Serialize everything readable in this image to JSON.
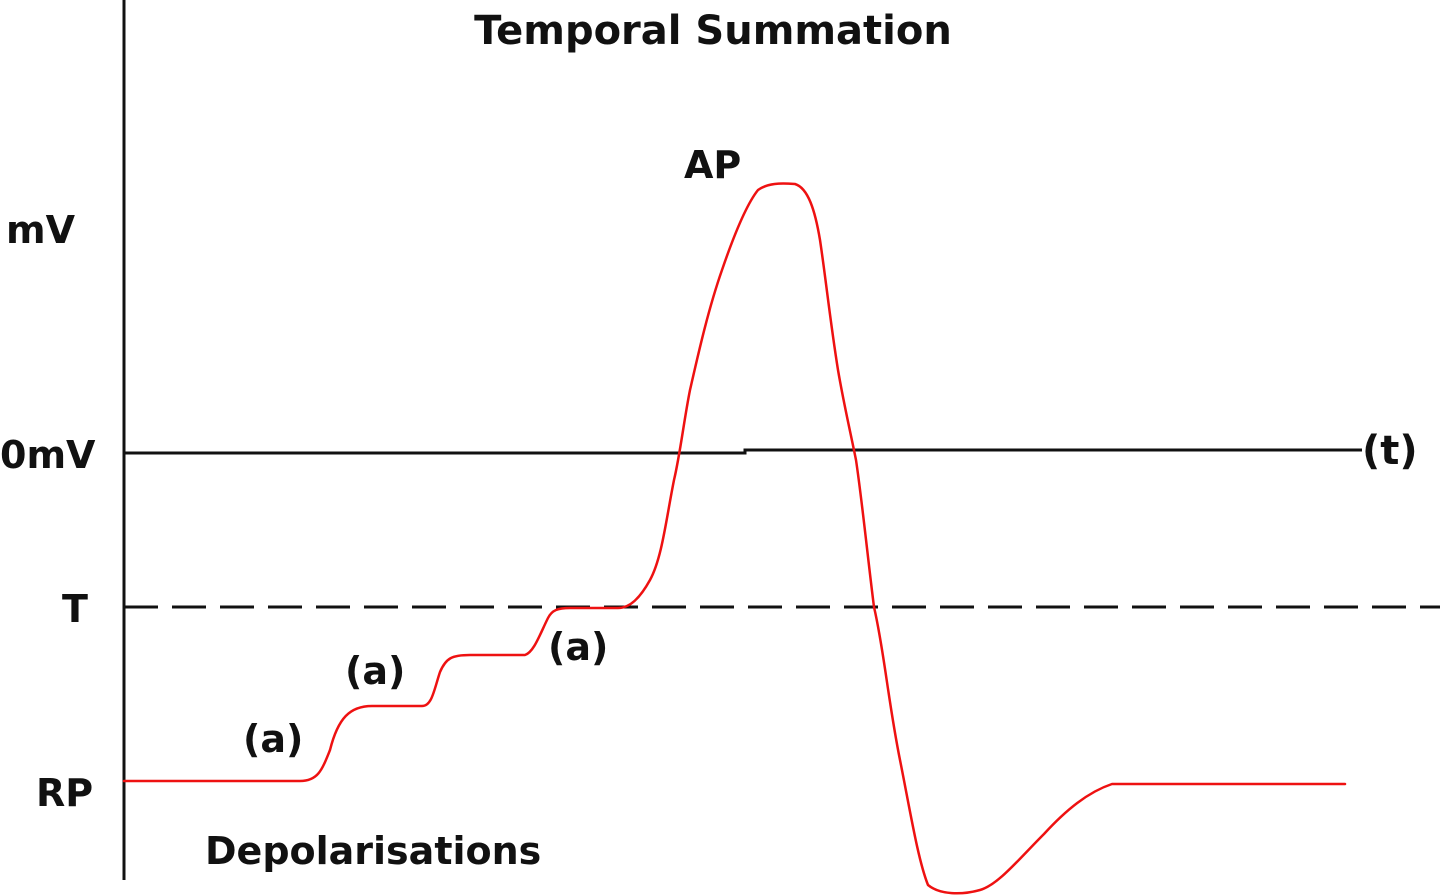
{
  "title": "Temporal Summation",
  "y_axis": {
    "unit_label": "mV",
    "zero_label": "0mV",
    "threshold_label": "T",
    "resting_label": "RP"
  },
  "x_axis": {
    "label": "(t)"
  },
  "annotations": {
    "action_potential": "AP",
    "epsp_1": "(a)",
    "epsp_2": "(a)",
    "epsp_3": "(a)",
    "depolarisations": "Depolarisations"
  },
  "colors": {
    "trace": "#ee1111",
    "axes": "#111111",
    "background": "#ffffff"
  },
  "line_styles": {
    "zero_line": "solid",
    "threshold_line": "dashed"
  }
}
